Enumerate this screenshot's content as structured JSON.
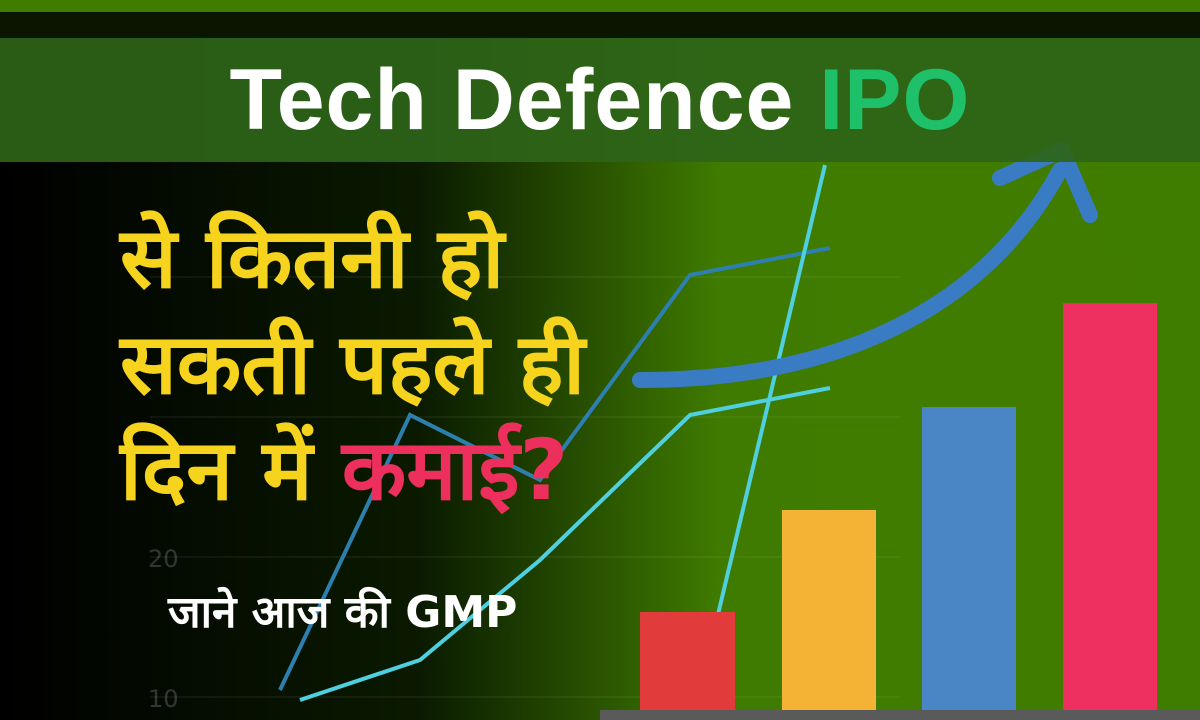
{
  "title": {
    "text": "Tech Defence",
    "highlight": "IPO"
  },
  "headline": {
    "lines": [
      "से कितनी हो",
      "सकती पहले ही",
      "दिन में"
    ],
    "highlight": "कमाई?"
  },
  "subtitle": "जाने आज की GMP",
  "background_labels": [
    "20",
    "10"
  ]
}
